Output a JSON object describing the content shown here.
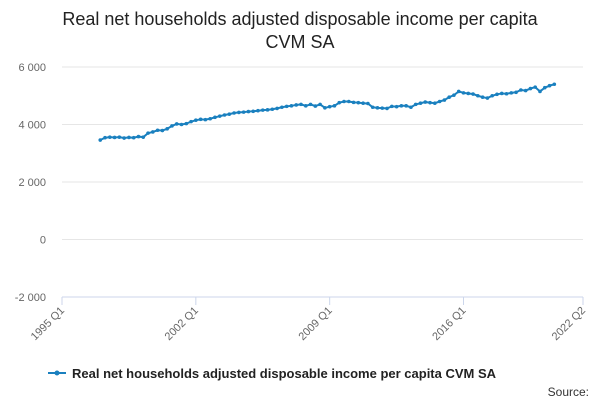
{
  "chart_data": {
    "type": "line",
    "title": "Real net households adjusted disposable income per capita CVM SA",
    "categories": [
      "1995 Q1",
      null,
      null,
      null,
      null,
      null,
      null,
      null,
      null,
      null,
      null,
      null,
      null,
      null,
      null,
      null,
      null,
      null,
      null,
      null,
      null,
      null,
      null,
      null,
      null,
      null,
      null,
      null,
      "2002 Q1",
      null,
      null,
      null,
      null,
      null,
      null,
      null,
      null,
      null,
      null,
      null,
      null,
      null,
      null,
      null,
      null,
      null,
      null,
      null,
      null,
      null,
      null,
      null,
      null,
      null,
      null,
      null,
      "2009 Q1",
      null,
      null,
      null,
      null,
      null,
      null,
      null,
      null,
      null,
      null,
      null,
      null,
      null,
      null,
      null,
      null,
      null,
      null,
      null,
      null,
      null,
      null,
      null,
      null,
      null,
      null,
      null,
      "2016 Q1",
      null,
      null,
      null,
      null,
      null,
      null,
      null,
      null,
      null,
      null,
      null,
      null,
      null,
      null,
      null,
      null,
      null,
      null,
      null,
      null,
      null,
      null,
      null,
      null,
      "2022 Q2"
    ],
    "series": [
      {
        "name": "Real net households adjusted disposable income per capita CVM SA",
        "color": "#1a80bf",
        "values": [
          null,
          null,
          null,
          null,
          null,
          null,
          null,
          null,
          3460,
          3540,
          3560,
          3550,
          3560,
          3530,
          3550,
          3540,
          3580,
          3560,
          3700,
          3740,
          3800,
          3790,
          3850,
          3950,
          4020,
          4000,
          4030,
          4100,
          4150,
          4180,
          4170,
          4200,
          4250,
          4290,
          4330,
          4360,
          4400,
          4420,
          4430,
          4450,
          4460,
          4480,
          4500,
          4510,
          4530,
          4560,
          4600,
          4630,
          4650,
          4680,
          4700,
          4650,
          4700,
          4640,
          4700,
          4580,
          4620,
          4650,
          4760,
          4800,
          4800,
          4770,
          4760,
          4740,
          4730,
          4600,
          4580,
          4570,
          4560,
          4630,
          4620,
          4650,
          4650,
          4600,
          4700,
          4740,
          4780,
          4760,
          4740,
          4800,
          4850,
          4950,
          5020,
          5150,
          5100,
          5080,
          5060,
          5000,
          4950,
          4920,
          5000,
          5050,
          5080,
          5070,
          5100,
          5120,
          5200,
          5180,
          5250,
          5300,
          5150,
          5280,
          5350,
          5400,
          null,
          null,
          null,
          null,
          null,
          null
        ]
      }
    ],
    "ylim": [
      -2000,
      6000
    ],
    "yticks": [
      {
        "value": -2000,
        "label": "-2 000"
      },
      0,
      {
        "value": 2000,
        "label": "2 000"
      },
      {
        "value": 4000,
        "label": "4 000"
      },
      {
        "value": 6000,
        "label": "6 000"
      }
    ],
    "grid": true,
    "legend": "bottom",
    "source_label": "Source:"
  }
}
